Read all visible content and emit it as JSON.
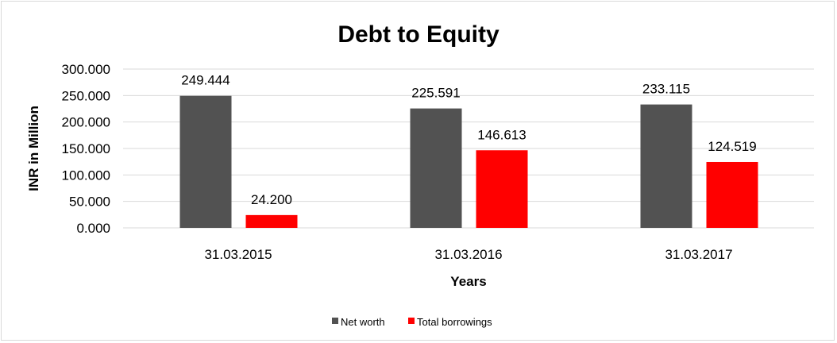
{
  "chart_data": {
    "type": "bar",
    "title": "Debt to Equity",
    "xlabel": "Years",
    "ylabel": "INR in Million",
    "categories": [
      "31.03.2015",
      "31.03.2016",
      "31.03.2017"
    ],
    "series": [
      {
        "name": "Net worth",
        "values": [
          249.444,
          225.591,
          233.115
        ],
        "labels": [
          "249.444",
          "225.591",
          "233.115"
        ],
        "color": "#525252"
      },
      {
        "name": "Total borrowings",
        "values": [
          24.2,
          146.613,
          124.519
        ],
        "labels": [
          "24.200",
          "146.613",
          "124.519"
        ],
        "color": "#ff0000"
      }
    ],
    "ylim": [
      0,
      300
    ],
    "yticks": [
      0,
      50,
      100,
      150,
      200,
      250,
      300
    ],
    "ytick_labels": [
      "0.000",
      "50.000",
      "100.000",
      "150.000",
      "200.000",
      "250.000",
      "300.000"
    ],
    "grid": true,
    "legend": "bottom"
  }
}
